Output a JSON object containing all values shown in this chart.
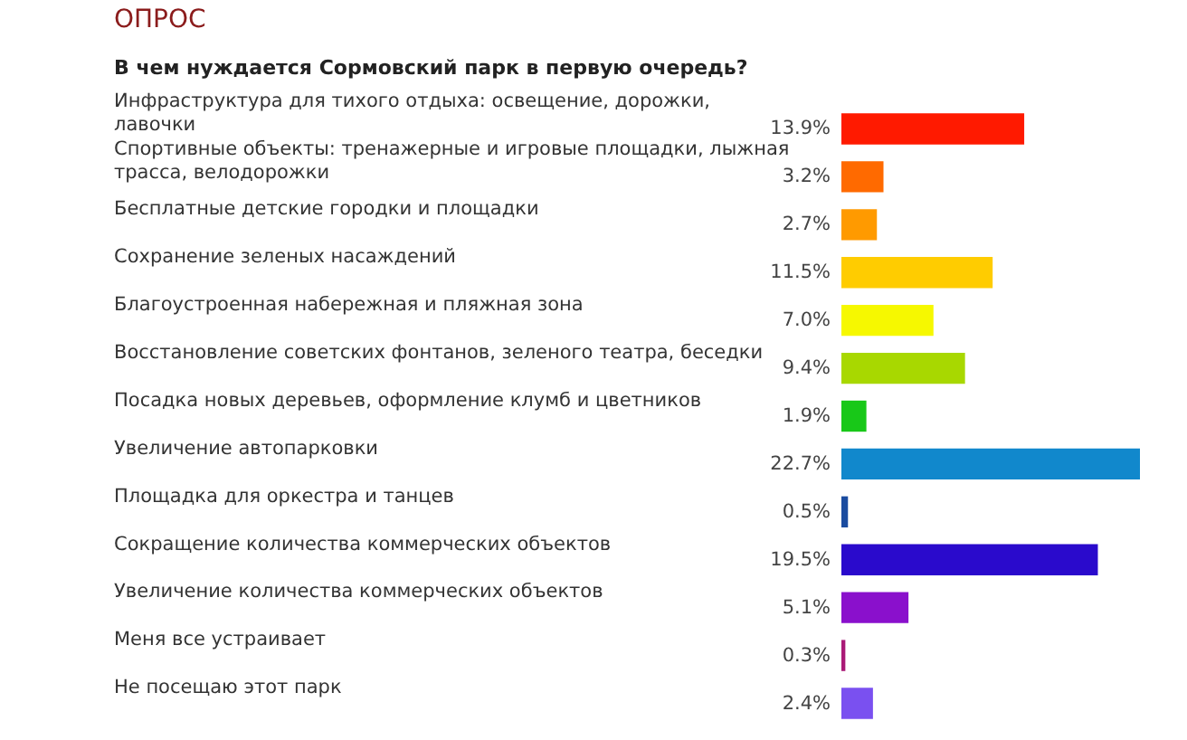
{
  "chart_data": {
    "type": "bar",
    "orientation": "horizontal",
    "title": "ОПРОС",
    "subtitle": "В чем нуждается Сормовский парк в первую очередь?",
    "categories": [
      "Инфраструктура для тихого отдыха: освещение, дорожки, лавочки",
      "Спортивные объекты: тренажерные и игровые площадки, лыжная трасса, велодорожки",
      "Бесплатные детские городки и площадки",
      "Сохранение зеленых насаждений",
      "Благоустроенная набережная и пляжная зона",
      "Восстановление советских фонтанов, зеленого театра, беседки",
      "Посадка новых деревьев, оформление клумб и цветников",
      "Увеличение автопарковки",
      "Площадка для оркестра и танцев",
      "Сокращение количества коммерческих объектов",
      "Увеличение количества коммерческих объектов",
      "Меня все устраивает",
      "Не посещаю этот парк"
    ],
    "values": [
      13.9,
      3.2,
      2.7,
      11.5,
      7.0,
      9.4,
      1.9,
      22.7,
      0.5,
      19.5,
      5.1,
      0.3,
      2.4
    ],
    "value_labels": [
      "13.9%",
      "3.2%",
      "2.7%",
      "11.5%",
      "7.0%",
      "9.4%",
      "1.9%",
      "22.7%",
      "0.5%",
      "19.5%",
      "5.1%",
      "0.3%",
      "2.4%"
    ],
    "colors": [
      "#ff1a00",
      "#ff6a00",
      "#ff9a00",
      "#ffcc00",
      "#f6f800",
      "#a8d800",
      "#18c818",
      "#1188cc",
      "#1a4ca0",
      "#2a0acc",
      "#8a10cc",
      "#aa1a77",
      "#7a50f0"
    ]
  }
}
